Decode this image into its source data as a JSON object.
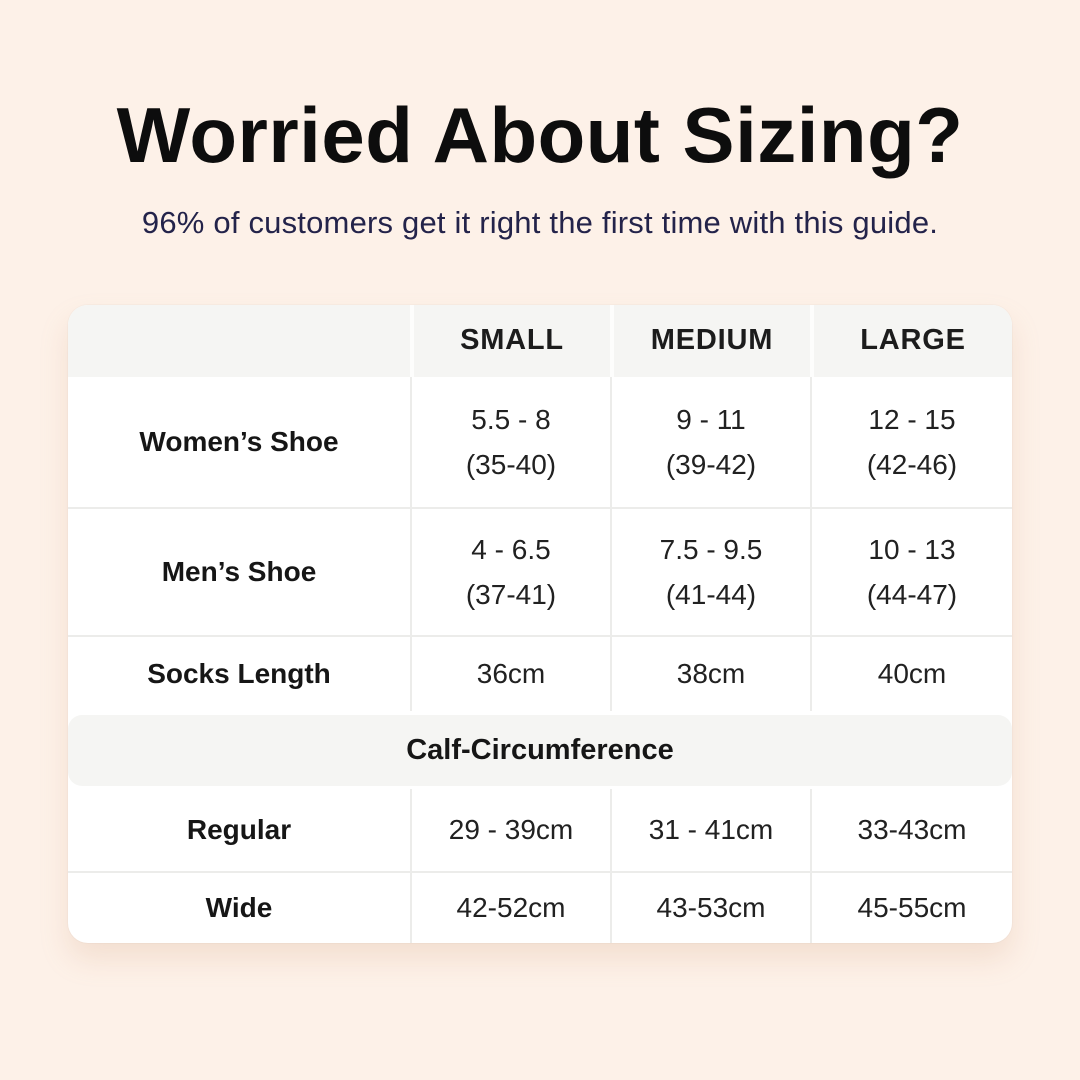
{
  "header": {
    "title": "Worried About Sizing?",
    "subtitle": "96% of customers get it right the first time with this guide."
  },
  "size_chart": {
    "columns": [
      "",
      "SMALL",
      "MEDIUM",
      "LARGE"
    ],
    "rows": [
      {
        "label": "Women’s Shoe",
        "small": [
          "5.5 - 8",
          "(35-40)"
        ],
        "medium": [
          "9 - 11",
          "(39-42)"
        ],
        "large": [
          "12 - 15",
          "(42-46)"
        ]
      },
      {
        "label": "Men’s Shoe",
        "small": [
          "4 - 6.5",
          "(37-41)"
        ],
        "medium": [
          "7.5 - 9.5",
          "(41-44)"
        ],
        "large": [
          "10 - 13",
          "(44-47)"
        ]
      },
      {
        "label": "Socks Length",
        "small": [
          "36cm"
        ],
        "medium": [
          "38cm"
        ],
        "large": [
          "40cm"
        ]
      }
    ],
    "section_title": "Calf-Circumference",
    "calf_rows": [
      {
        "label": "Regular",
        "small": [
          "29 - 39cm"
        ],
        "medium": [
          "31 - 41cm"
        ],
        "large": [
          "33-43cm"
        ]
      },
      {
        "label": "Wide",
        "small": [
          "42-52cm"
        ],
        "medium": [
          "43-53cm"
        ],
        "large": [
          "45-55cm"
        ]
      }
    ]
  },
  "colors": {
    "background": "#fdf1e8",
    "card": "#ffffff",
    "header_band": "#f5f5f3",
    "divider": "#ececea",
    "title_text": "#0d0d0d",
    "subtitle_text": "#23234a"
  }
}
